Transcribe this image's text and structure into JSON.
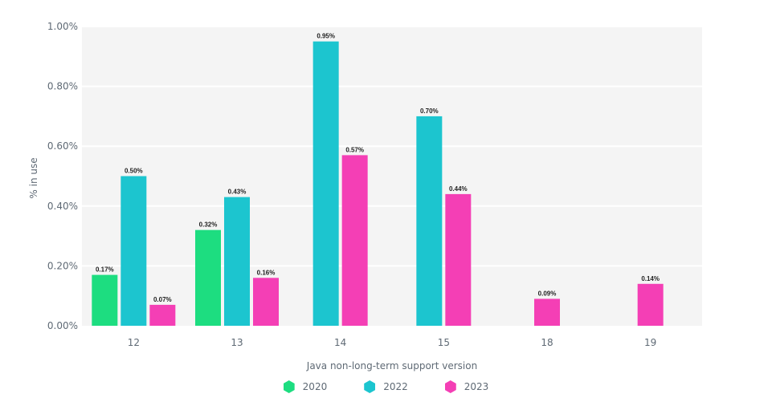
{
  "chart_data": {
    "type": "bar",
    "xlabel": "Java non-long-term support version",
    "ylabel": "% in use",
    "ylim": [
      0,
      1.0
    ],
    "yticks": [
      "0.00%",
      "0.20%",
      "0.40%",
      "0.60%",
      "0.80%",
      "1.00%"
    ],
    "categories": [
      "12",
      "13",
      "14",
      "15",
      "18",
      "19"
    ],
    "grid": true,
    "legend_position": "bottom",
    "series": [
      {
        "name": "2020",
        "color": "#1ddd80",
        "values": [
          0.17,
          0.32,
          null,
          null,
          null,
          null
        ],
        "labels": [
          "0.17%",
          "0.32%",
          null,
          null,
          null,
          null
        ]
      },
      {
        "name": "2022",
        "color": "#1cc5cf",
        "values": [
          0.5,
          0.43,
          0.95,
          0.7,
          null,
          null
        ],
        "labels": [
          "0.50%",
          "0.43%",
          "0.95%",
          "0.70%",
          null,
          null
        ]
      },
      {
        "name": "2023",
        "color": "#f43fb5",
        "values": [
          0.07,
          0.16,
          0.57,
          0.44,
          0.09,
          0.14
        ],
        "labels": [
          "0.07%",
          "0.16%",
          "0.57%",
          "0.44%",
          "0.09%",
          "0.14%"
        ]
      }
    ]
  }
}
